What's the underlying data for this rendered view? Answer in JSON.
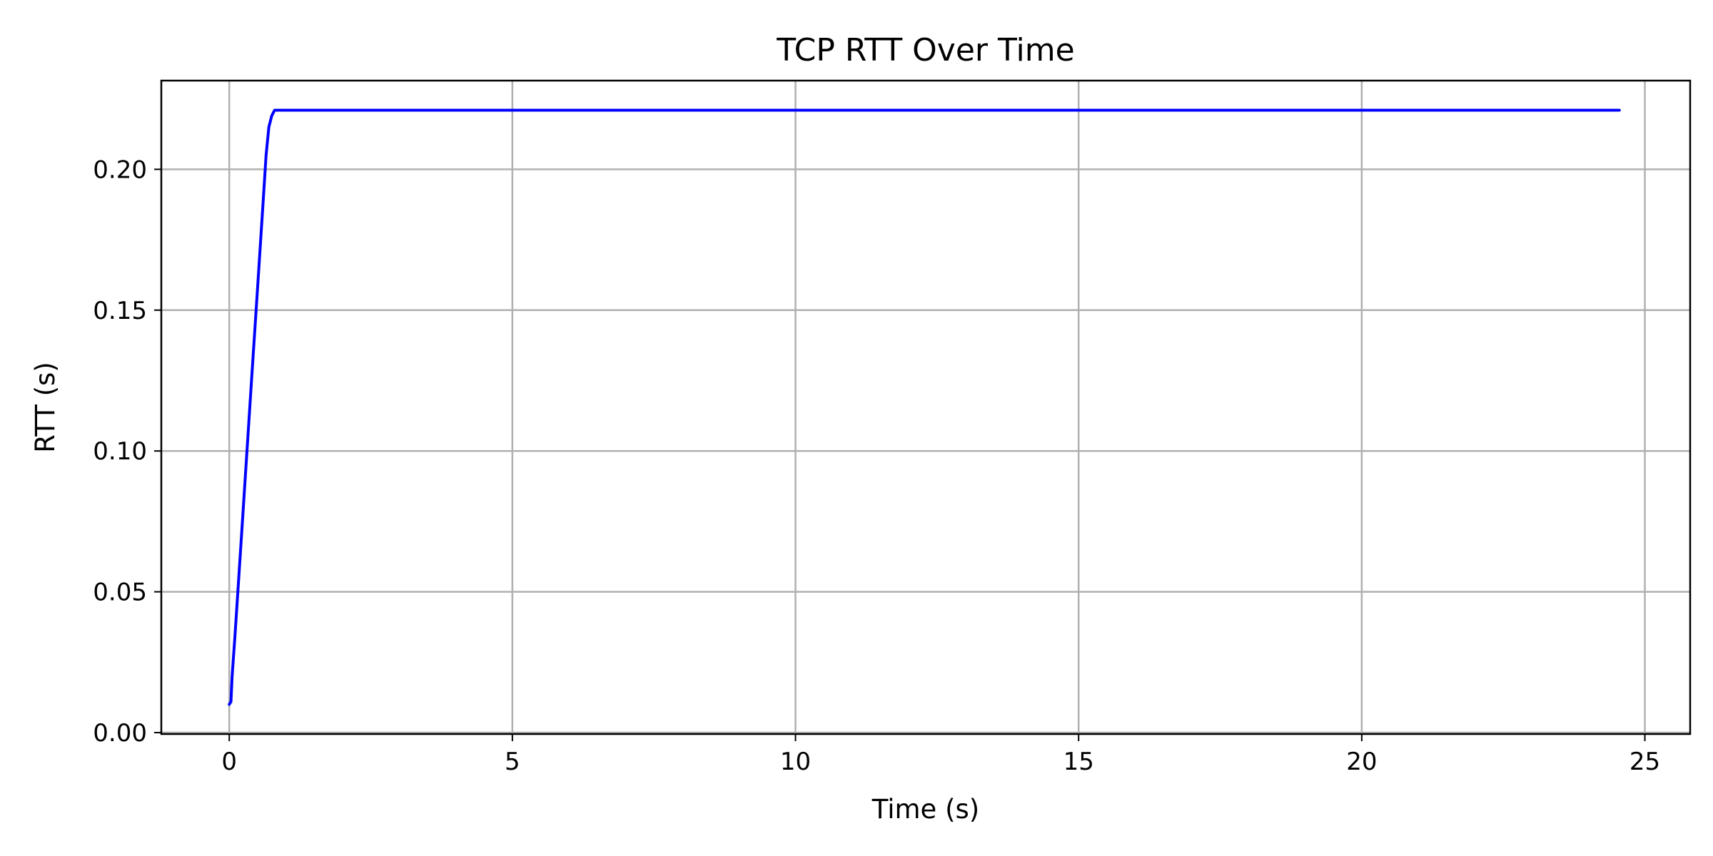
{
  "chart_data": {
    "type": "line",
    "title": "TCP RTT Over Time",
    "xlabel": "Time (s)",
    "ylabel": "RTT (s)",
    "xlim": [
      -1.2,
      25.8
    ],
    "ylim": [
      -0.0005,
      0.2315
    ],
    "xticks": [
      0,
      5,
      10,
      15,
      20,
      25
    ],
    "yticks": [
      0.0,
      0.05,
      0.1,
      0.15,
      0.2
    ],
    "xtick_labels": [
      "0",
      "5",
      "10",
      "15",
      "20",
      "25"
    ],
    "ytick_labels": [
      "0.00",
      "0.05",
      "0.10",
      "0.15",
      "0.20"
    ],
    "grid": true,
    "legend": "none",
    "series": [
      {
        "color": "#0000ff",
        "x": [
          0.0,
          0.03,
          0.05,
          0.1,
          0.2,
          0.3,
          0.4,
          0.5,
          0.6,
          0.65,
          0.7,
          0.75,
          0.8,
          0.9,
          1.0,
          2.0,
          4.0,
          6.0,
          8.0,
          10.0,
          12.0,
          14.0,
          16.0,
          18.0,
          20.0,
          22.0,
          24.0,
          24.55
        ],
        "y": [
          0.01,
          0.011,
          0.02,
          0.034,
          0.065,
          0.096,
          0.127,
          0.158,
          0.189,
          0.205,
          0.215,
          0.219,
          0.221,
          0.221,
          0.221,
          0.221,
          0.221,
          0.221,
          0.221,
          0.221,
          0.221,
          0.221,
          0.221,
          0.221,
          0.221,
          0.221,
          0.221,
          0.221
        ]
      }
    ]
  }
}
